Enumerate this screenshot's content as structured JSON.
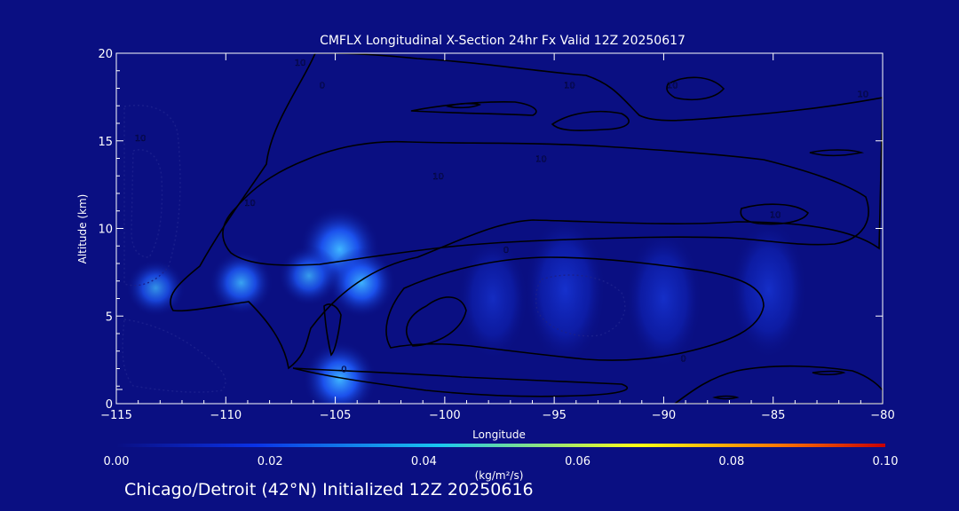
{
  "chart_data": {
    "type": "heatmap",
    "title": "CMFLX Longitudinal X-Section 24hr  Fx Valid 12Z 20250617",
    "xlabel": "Longitude",
    "ylabel": "Altitude (km)",
    "xlim": [
      -115,
      -80
    ],
    "ylim": [
      0,
      20
    ],
    "x_ticks": [
      -115,
      -110,
      -105,
      -100,
      -95,
      -90,
      -85,
      -80
    ],
    "y_ticks": [
      0,
      5,
      10,
      15,
      20
    ],
    "colorbar": {
      "ticks": [
        "0.00",
        "0.02",
        "0.04",
        "0.06",
        "0.08",
        "0.10"
      ],
      "range": [
        0,
        0.1
      ],
      "unit_label": "(kg/m²/s)",
      "colors": [
        "#0a0f82",
        "#0a32e6",
        "#19c8f0",
        "#ffff14",
        "#ff7800",
        "#c80000"
      ]
    },
    "fill_regions": [
      {
        "lon": -104.8,
        "alt": 8.8,
        "value": 0.034
      },
      {
        "lon": -103.8,
        "alt": 6.9,
        "value": 0.024
      },
      {
        "lon": -106.2,
        "alt": 7.3,
        "value": 0.018
      },
      {
        "lon": -109.3,
        "alt": 6.9,
        "value": 0.02
      },
      {
        "lon": -113.2,
        "alt": 6.6,
        "value": 0.016
      },
      {
        "lon": -104.8,
        "alt": 1.4,
        "value": 0.028
      },
      {
        "lon": -94.5,
        "alt": 6.5,
        "value": 0.013
      },
      {
        "lon": -90.0,
        "alt": 6.0,
        "value": 0.011
      },
      {
        "lon": -85.2,
        "alt": 6.5,
        "value": 0.011
      },
      {
        "lon": -97.8,
        "alt": 6.0,
        "value": 0.008
      }
    ],
    "contour_labels": [
      {
        "lon": -104.6,
        "alt": 1.8,
        "text": "0"
      },
      {
        "lon": -97.2,
        "alt": 8.6,
        "text": "0"
      },
      {
        "lon": -89.1,
        "alt": 2.4,
        "text": "0"
      },
      {
        "lon": -100.3,
        "alt": 12.8,
        "text": "10"
      },
      {
        "lon": -95.6,
        "alt": 13.8,
        "text": "10"
      },
      {
        "lon": -84.9,
        "alt": 10.6,
        "text": "10"
      },
      {
        "lon": -80.9,
        "alt": 17.5,
        "text": "10"
      },
      {
        "lon": -94.3,
        "alt": 18.0,
        "text": "10"
      },
      {
        "lon": -106.6,
        "alt": 19.3,
        "text": "10"
      },
      {
        "lon": -105.6,
        "alt": 18.0,
        "text": "0"
      },
      {
        "lon": -89.6,
        "alt": 18.0,
        "text": "10"
      },
      {
        "lon": -113.9,
        "alt": 15.0,
        "text": "10"
      },
      {
        "lon": -108.9,
        "alt": 11.3,
        "text": "10"
      }
    ]
  },
  "footer": {
    "text": "Chicago/Detroit (42°N) Initialized 12Z 20250616"
  }
}
